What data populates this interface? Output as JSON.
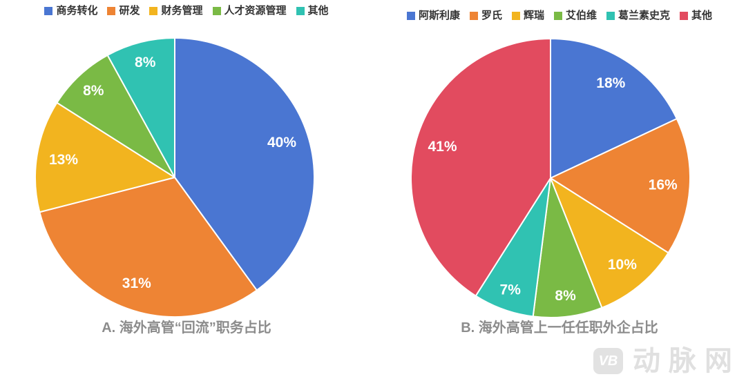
{
  "figure": {
    "background": "#ffffff",
    "title_color": "#8c8c8c",
    "legend_text_color": "#333333"
  },
  "watermark": {
    "logo_text": "VB",
    "brand_text": "动脉网",
    "color": "#e0e0e0"
  },
  "chart_data": [
    {
      "type": "pie",
      "title": "A. 海外高管“回流”职务占比",
      "categories": [
        "商务转化",
        "研发",
        "财务管理",
        "人才资源管理",
        "其他"
      ],
      "values": [
        40,
        31,
        13,
        8,
        8
      ],
      "labels": [
        "40%",
        "31%",
        "13%",
        "8%",
        "8%"
      ],
      "colors": [
        "#4a76d2",
        "#ee8434",
        "#f2b41f",
        "#7aba45",
        "#30c2b2"
      ],
      "label_color": "#ffffff",
      "slice_separator_color": "#ffffff",
      "legend_position": "top",
      "start_angle_deg": 0,
      "direction": "clockwise"
    },
    {
      "type": "pie",
      "title": "B. 海外高管上一任任职外企占比",
      "categories": [
        "阿斯利康",
        "罗氏",
        "辉瑞",
        "艾伯维",
        "葛兰素史克",
        "其他"
      ],
      "values": [
        18,
        16,
        10,
        8,
        7,
        41
      ],
      "labels": [
        "18%",
        "16%",
        "10%",
        "8%",
        "7%",
        "41%"
      ],
      "colors": [
        "#4a76d2",
        "#ee8434",
        "#f2b41f",
        "#7aba45",
        "#30c2b2",
        "#e24b5f"
      ],
      "label_color": "#ffffff",
      "slice_separator_color": "#ffffff",
      "legend_position": "top",
      "start_angle_deg": 0,
      "direction": "clockwise"
    }
  ]
}
